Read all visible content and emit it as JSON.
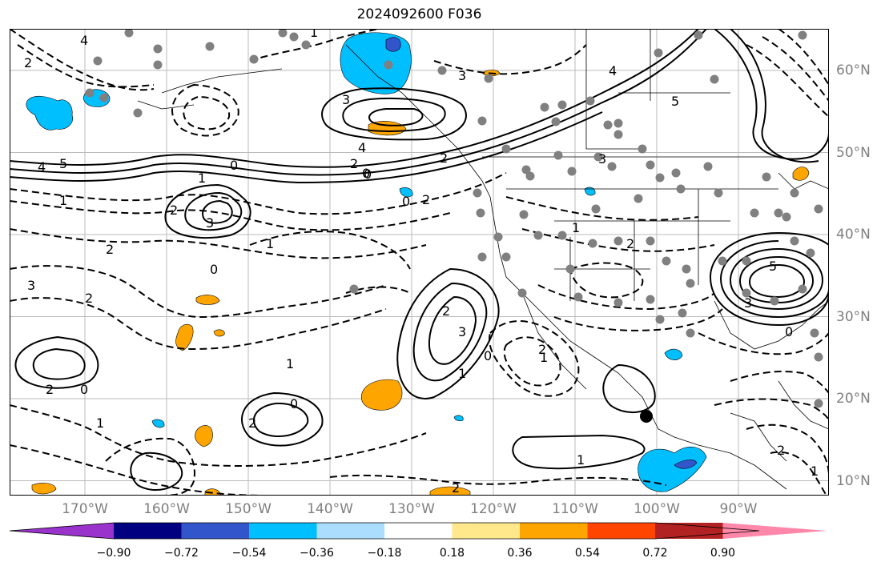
{
  "title": "2024092600 F036",
  "lon_labels": [
    {
      "text": "170°W",
      "lon": -170
    },
    {
      "text": "160°W",
      "lon": -160
    },
    {
      "text": "150°W",
      "lon": -150
    },
    {
      "text": "140°W",
      "lon": -140
    },
    {
      "text": "130°W",
      "lon": -130
    },
    {
      "text": "120°W",
      "lon": -120
    },
    {
      "text": "110°W",
      "lon": -110
    },
    {
      "text": "100°W",
      "lon": -100
    },
    {
      "text": "90°W",
      "lon": -90
    }
  ],
  "lat_labels": [
    {
      "text": "60°N",
      "lat": 60
    },
    {
      "text": "50°N",
      "lat": 50
    },
    {
      "text": "40°N",
      "lat": 40
    },
    {
      "text": "30°N",
      "lat": 30
    },
    {
      "text": "20°N",
      "lat": 20
    },
    {
      "text": "10°N",
      "lat": 10
    }
  ],
  "colorbar": {
    "colors": [
      "#9933cc",
      "#000080",
      "#3355cc",
      "#00bfff",
      "#aaddff",
      "#ffffff",
      "#ffe88c",
      "#ffa500",
      "#ff4500",
      "#b22222",
      "#ff88aa"
    ],
    "ticks": [
      "−0.90",
      "−0.72",
      "−0.54",
      "−0.36",
      "−0.18",
      "0.18",
      "0.36",
      "0.54",
      "0.72",
      "0.90"
    ]
  },
  "contour_labels": [
    {
      "text": "4"
    },
    {
      "text": "2"
    },
    {
      "text": "3"
    },
    {
      "text": "0"
    },
    {
      "text": "4"
    },
    {
      "text": "5"
    },
    {
      "text": "1"
    },
    {
      "text": "0"
    },
    {
      "text": "2"
    },
    {
      "text": "3"
    },
    {
      "text": "2"
    },
    {
      "text": "1"
    },
    {
      "text": "2"
    },
    {
      "text": "3"
    },
    {
      "text": "2"
    },
    {
      "text": "1"
    },
    {
      "text": "0"
    },
    {
      "text": "4"
    },
    {
      "text": "3"
    },
    {
      "text": "2"
    },
    {
      "text": "0"
    },
    {
      "text": "5"
    },
    {
      "text": "4"
    },
    {
      "text": "3"
    },
    {
      "text": "2"
    },
    {
      "text": "1"
    },
    {
      "text": "0"
    },
    {
      "text": "1"
    },
    {
      "text": "3"
    },
    {
      "text": "2"
    },
    {
      "text": "2"
    },
    {
      "text": "1"
    },
    {
      "text": "0"
    },
    {
      "text": "1"
    },
    {
      "text": "2"
    },
    {
      "text": "1"
    },
    {
      "text": "2"
    },
    {
      "text": "0"
    },
    {
      "text": "1"
    },
    {
      "text": "0"
    },
    {
      "text": "2"
    },
    {
      "text": "1"
    },
    {
      "text": "2"
    },
    {
      "text": "5"
    },
    {
      "text": "3"
    },
    {
      "text": "0"
    },
    {
      "text": "2"
    },
    {
      "text": "1"
    }
  ]
}
